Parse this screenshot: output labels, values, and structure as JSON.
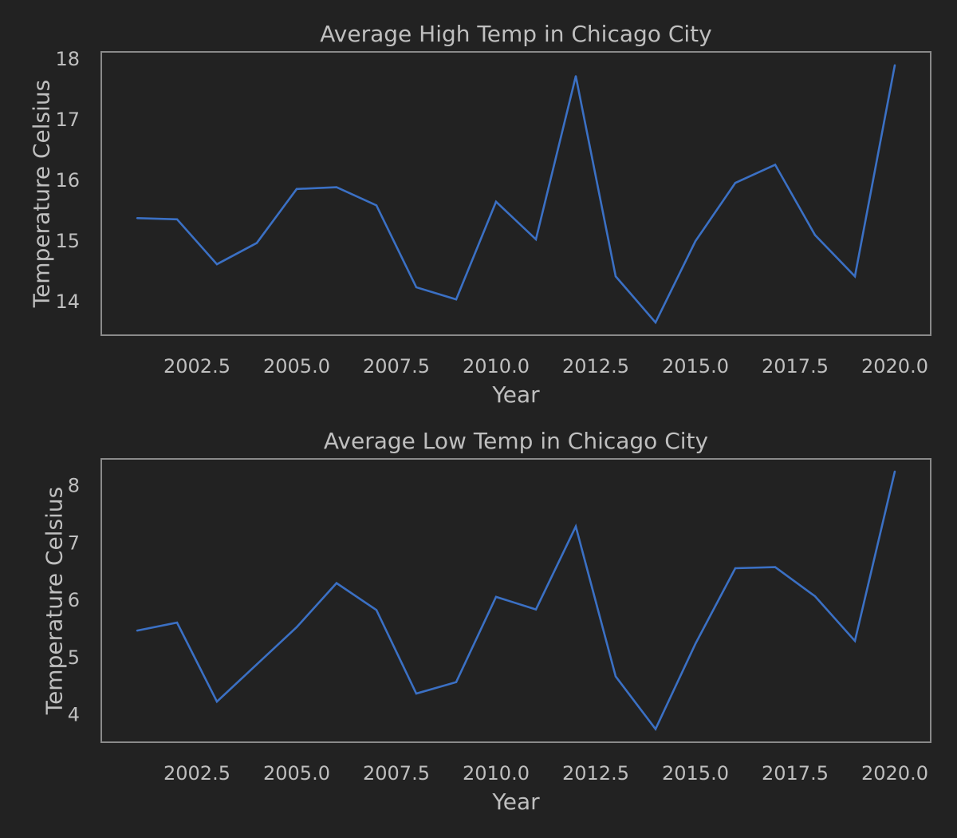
{
  "chart_data": [
    {
      "type": "line",
      "title": "Average High Temp in Chicago City",
      "xlabel": "Year",
      "ylabel": "Temperature Celsius",
      "xlim": [
        2000.1,
        2020.9
      ],
      "ylim": [
        13.45,
        18.12
      ],
      "xticks": [
        2002.5,
        2005.0,
        2007.5,
        2010.0,
        2012.5,
        2015.0,
        2017.5,
        2020.0
      ],
      "xtick_labels": [
        "2002.5",
        "2005.0",
        "2007.5",
        "2010.0",
        "2012.5",
        "2015.0",
        "2017.5",
        "2020.0"
      ],
      "yticks": [
        14,
        15,
        16,
        17,
        18
      ],
      "ytick_labels": [
        "14",
        "15",
        "16",
        "17",
        "18"
      ],
      "grid": false,
      "x": [
        2001,
        2002,
        2003,
        2004,
        2005,
        2006,
        2007,
        2008,
        2009,
        2010,
        2011,
        2012,
        2013,
        2014,
        2015,
        2016,
        2017,
        2018,
        2019,
        2020
      ],
      "series": [
        {
          "color": "#3b70c4",
          "values": [
            15.38,
            15.36,
            14.62,
            14.97,
            15.86,
            15.89,
            15.59,
            14.24,
            14.04,
            15.65,
            15.03,
            17.72,
            14.42,
            13.66,
            15.0,
            15.96,
            16.26,
            15.1,
            14.42,
            17.9
          ]
        }
      ]
    },
    {
      "type": "line",
      "title": "Average Low Temp in Chicago City",
      "xlabel": "Year",
      "ylabel": "Temperature Celsius",
      "xlim": [
        2000.1,
        2020.9
      ],
      "ylim": [
        3.52,
        8.47
      ],
      "xticks": [
        2002.5,
        2005.0,
        2007.5,
        2010.0,
        2012.5,
        2015.0,
        2017.5,
        2020.0
      ],
      "xtick_labels": [
        "2002.5",
        "2005.0",
        "2007.5",
        "2010.0",
        "2012.5",
        "2015.0",
        "2017.5",
        "2020.0"
      ],
      "yticks": [
        4,
        5,
        6,
        7,
        8
      ],
      "ytick_labels": [
        "4",
        "5",
        "6",
        "7",
        "8"
      ],
      "grid": false,
      "x": [
        2001,
        2002,
        2003,
        2004,
        2005,
        2006,
        2007,
        2008,
        2009,
        2010,
        2011,
        2012,
        2013,
        2014,
        2015,
        2016,
        2017,
        2018,
        2019,
        2020
      ],
      "series": [
        {
          "color": "#3b70c4",
          "values": [
            5.47,
            5.61,
            4.23,
            4.88,
            5.53,
            6.3,
            5.83,
            4.37,
            4.57,
            6.06,
            5.84,
            7.29,
            4.67,
            3.75,
            5.24,
            6.56,
            6.58,
            6.07,
            5.29,
            8.25
          ]
        }
      ]
    }
  ]
}
